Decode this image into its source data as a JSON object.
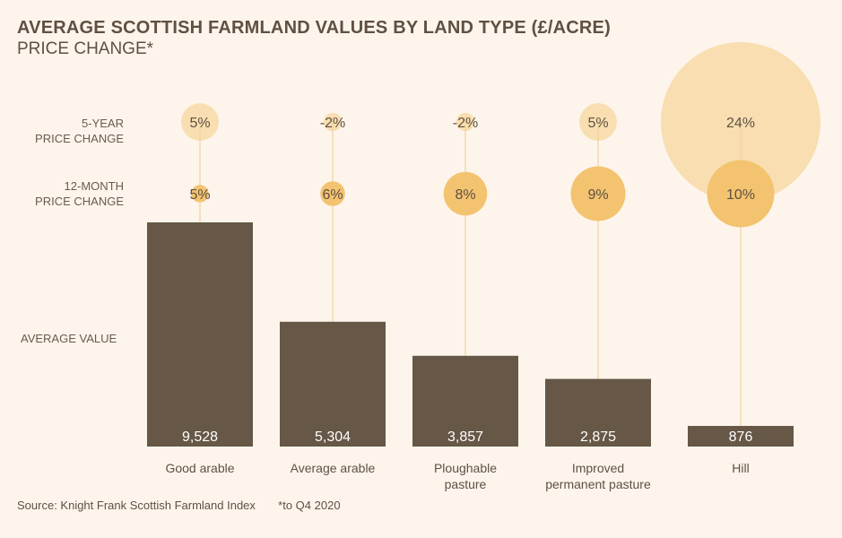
{
  "title": "AVERAGE SCOTTISH FARMLAND VALUES BY LAND TYPE (£/ACRE)",
  "subtitle": "PRICE CHANGE*",
  "row_labels": {
    "five_year": [
      "5-YEAR",
      "PRICE CHANGE"
    ],
    "twelve_month": [
      "12-MONTH",
      "PRICE CHANGE"
    ],
    "average_value": "AVERAGE VALUE"
  },
  "source": "Source: Knight Frank Scottish Farmland Index",
  "footnote": "*to Q4 2020",
  "colors": {
    "background": "#fdf5ec",
    "bar": "#665746",
    "bubble_5yr": "#f8deb0",
    "bubble_12m": "#f3c370",
    "line": "#f3d59e",
    "text": "#5f5042"
  },
  "chart_data": {
    "type": "bar",
    "title": "AVERAGE SCOTTISH FARMLAND VALUES BY LAND TYPE (£/ACRE)",
    "ylabel": "AVERAGE VALUE",
    "ylim": [
      0,
      9528
    ],
    "categories": [
      [
        "Good arable"
      ],
      [
        "Average arable"
      ],
      [
        "Ploughable",
        "pasture"
      ],
      [
        "Improved",
        "permanent pasture"
      ],
      [
        "Hill"
      ]
    ],
    "series": [
      {
        "name": "Average value (£/acre)",
        "values": [
          9528,
          5304,
          3857,
          2875,
          876
        ],
        "labels": [
          "9,528",
          "5,304",
          "3,857",
          "2,875",
          "876"
        ]
      },
      {
        "name": "5-year price change (%)",
        "values": [
          5,
          -2,
          -2,
          5,
          24
        ],
        "labels": [
          "5%",
          "-2%",
          "-2%",
          "5%",
          "24%"
        ]
      },
      {
        "name": "12-month price change (%)",
        "values": [
          5,
          6,
          8,
          9,
          10
        ],
        "labels": [
          "5%",
          "6%",
          "8%",
          "9%",
          "10%"
        ]
      }
    ]
  }
}
